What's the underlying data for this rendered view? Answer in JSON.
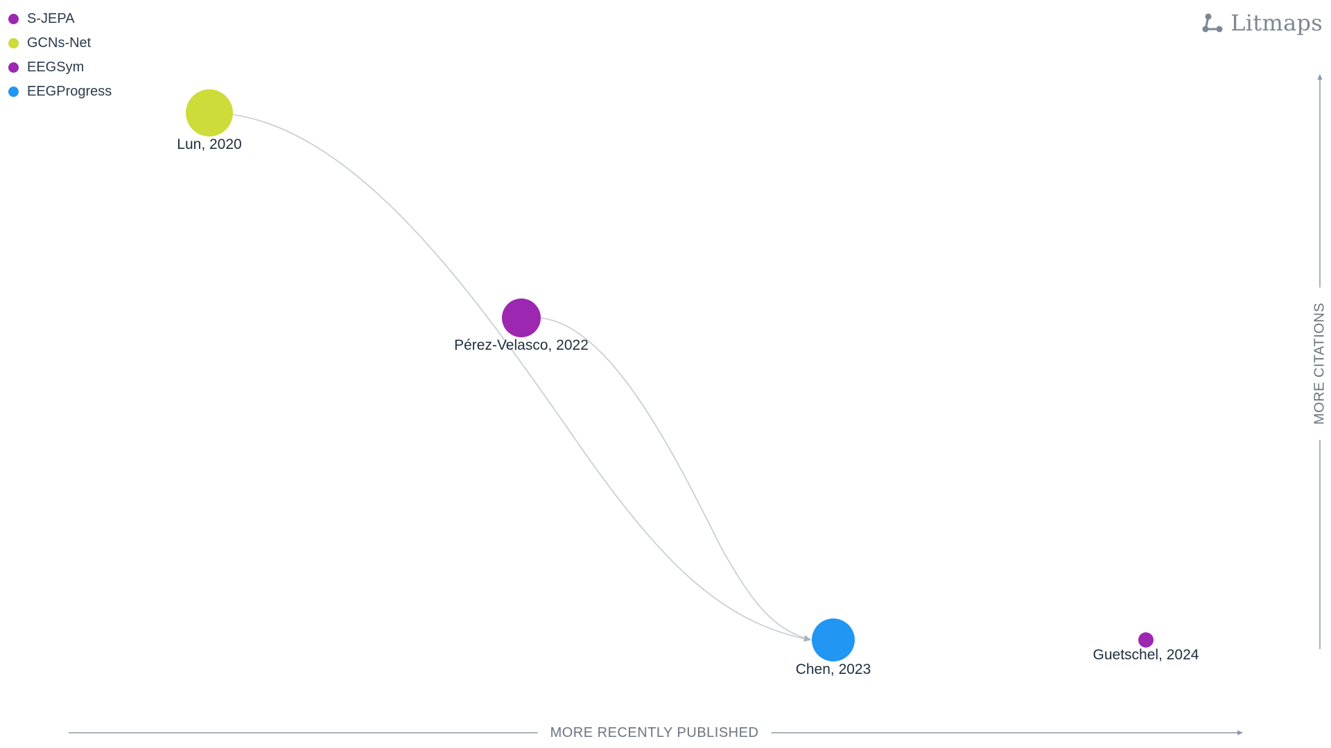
{
  "legend": {
    "items": [
      {
        "label": "S-JEPA",
        "color": "#9c27b0"
      },
      {
        "label": "GCNs-Net",
        "color": "#cddc39"
      },
      {
        "label": "EEGSym",
        "color": "#9c27b0"
      },
      {
        "label": "EEGProgress",
        "color": "#2196f3"
      }
    ]
  },
  "brand": {
    "name": "Litmaps",
    "icon": "litmaps-logo-icon"
  },
  "axes": {
    "x_label": "MORE RECENTLY PUBLISHED",
    "y_label": "MORE CITATIONS"
  },
  "nodes": [
    {
      "id": "lun",
      "label": "Lun, 2020",
      "color": "#cddc39"
    },
    {
      "id": "perez",
      "label": "Pérez-Velasco, 2022",
      "color": "#9c27b0"
    },
    {
      "id": "chen",
      "label": "Chen, 2023",
      "color": "#2196f3"
    },
    {
      "id": "guetschel",
      "label": "Guetschel, 2024",
      "color": "#9c27b0"
    }
  ],
  "links": [
    {
      "from": "lun",
      "to": "chen"
    },
    {
      "from": "perez",
      "to": "chen"
    }
  ],
  "colors": {
    "axis": "#8a96a6",
    "link": "#c4cad2",
    "link_arrow": "#a9b2bd"
  }
}
